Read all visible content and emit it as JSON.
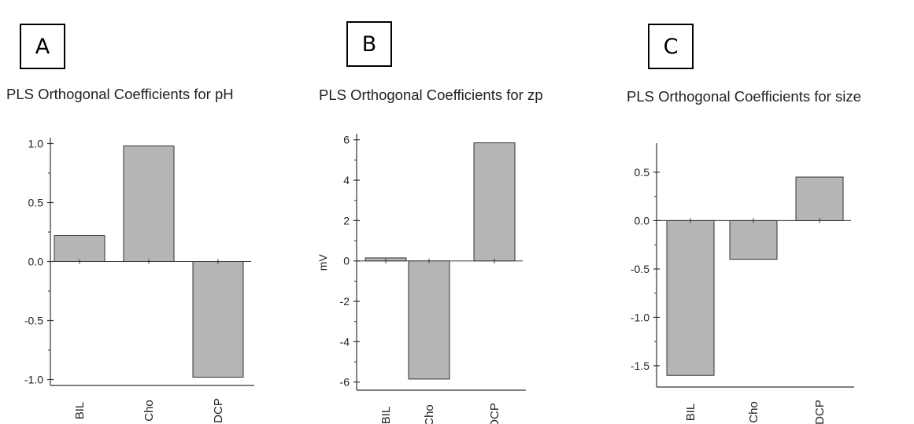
{
  "panels": [
    {
      "letter": "A"
    },
    {
      "letter": "B"
    },
    {
      "letter": "C"
    }
  ],
  "colors": {
    "bar_fill": "#b5b5b5",
    "bar_stroke": "#333333",
    "axis": "#333333"
  },
  "chart_data": [
    {
      "type": "bar",
      "title": "PLS Orthogonal Coefficients for pH",
      "categories": [
        "BIL",
        "Cho",
        "DCP"
      ],
      "values": [
        0.22,
        0.98,
        -0.98
      ],
      "ylabel": "",
      "ylim": [
        -1.05,
        1.05
      ],
      "yticks": [
        1.0,
        0.5,
        0.0,
        -0.5,
        -1.0
      ],
      "yticklabels": [
        "1.0",
        "0.5",
        "0.0",
        "-0.5",
        "-1.0"
      ],
      "grid": false
    },
    {
      "type": "bar",
      "title": "PLS Orthogonal Coefficients for zp",
      "categories": [
        "BIL",
        "Cho",
        "DCP"
      ],
      "values": [
        0.15,
        -5.85,
        5.85
      ],
      "ylabel": "mV",
      "ylim": [
        -6.4,
        6.3
      ],
      "yticks": [
        6,
        4,
        2,
        0,
        -2,
        -4,
        -6
      ],
      "yticklabels": [
        "6",
        "4",
        "2",
        "0",
        "-2",
        "-4",
        "-6"
      ],
      "grid": false
    },
    {
      "type": "bar",
      "title": "PLS Orthogonal Coefficients for size",
      "categories": [
        "BIL",
        "Cho",
        "DCP"
      ],
      "values": [
        -1.6,
        -0.4,
        0.45
      ],
      "ylabel": "",
      "ylim": [
        -1.72,
        0.8
      ],
      "yticks": [
        0.5,
        0.0,
        -0.5,
        -1.0,
        -1.5
      ],
      "yticklabels": [
        "0.5",
        "0.0",
        "-0.5",
        "-1.0",
        "-1.5"
      ],
      "grid": false
    }
  ]
}
